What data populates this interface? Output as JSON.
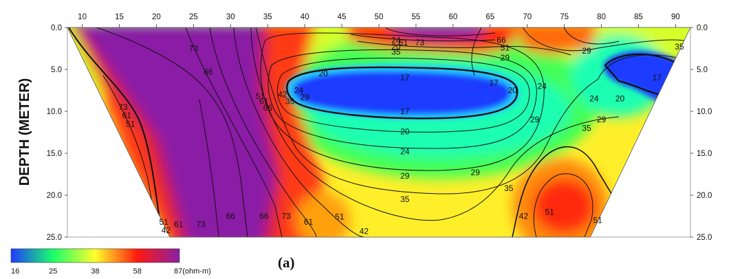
{
  "chart_data": {
    "type": "heatmap",
    "subtype": "resistivity-pseudosection",
    "title": "",
    "xlabel": "",
    "ylabel": "DEPTH (METER)",
    "panel_label": "(a)",
    "x_ticks": [
      10,
      15,
      20,
      25,
      30,
      35,
      40,
      45,
      50,
      55,
      60,
      65,
      70,
      75,
      80,
      85,
      90
    ],
    "y_ticks_left": [
      "0.0",
      "5.0",
      "10.0",
      "15.0",
      "20.0",
      "25.0"
    ],
    "y_ticks_right": [
      "0.0",
      "5.0",
      "10.0",
      "15.0",
      "20.0",
      "25.0"
    ],
    "xlim": [
      8,
      92
    ],
    "ylim": [
      0,
      25
    ],
    "y_inverted": true,
    "section_outline_xy": [
      [
        8.0,
        0
      ],
      [
        92.0,
        0
      ],
      [
        78.5,
        25
      ],
      [
        21.8,
        25
      ]
    ],
    "grid": false,
    "colorbar": {
      "ticks": [
        "16",
        "25",
        "38",
        "58"
      ],
      "max_label": "87(ohm-m)",
      "values": [
        16,
        25,
        38,
        58,
        87
      ],
      "colors": [
        "#1f3cff",
        "#19ff6a",
        "#ffff2a",
        "#ff1a10",
        "#8a1fa6"
      ],
      "placement": "bottom-left"
    },
    "regions": [
      {
        "label": "high resistivity body",
        "cx": 29,
        "cy": 14,
        "value": 87
      },
      {
        "label": "high resistivity top",
        "cx": 58,
        "cy": 0.6,
        "value": 87
      },
      {
        "label": "low resistivity lens",
        "cx": 55,
        "cy": 7.5,
        "value": 16
      },
      {
        "label": "low resistivity lens right",
        "cx": 86,
        "cy": 7,
        "value": 16
      },
      {
        "label": "moderate body",
        "cx": 74,
        "cy": 21,
        "value": 51
      }
    ],
    "contour_labels": [
      {
        "text": "73",
        "x": 25,
        "y": 2.5
      },
      {
        "text": "66",
        "x": 27,
        "y": 5.3
      },
      {
        "text": "73",
        "x": 15.5,
        "y": 9.5
      },
      {
        "text": "61",
        "x": 16,
        "y": 10.5
      },
      {
        "text": "51",
        "x": 16.5,
        "y": 11.5
      },
      {
        "text": "51",
        "x": 34,
        "y": 8.2
      },
      {
        "text": "61",
        "x": 34.5,
        "y": 8.8
      },
      {
        "text": "66",
        "x": 35,
        "y": 9.6
      },
      {
        "text": "42",
        "x": 37,
        "y": 8
      },
      {
        "text": "35",
        "x": 38,
        "y": 8.8
      },
      {
        "text": "24",
        "x": 39.2,
        "y": 7.5
      },
      {
        "text": "29",
        "x": 40,
        "y": 8.3
      },
      {
        "text": "20",
        "x": 42.5,
        "y": 5.5
      },
      {
        "text": "17",
        "x": 53.5,
        "y": 6
      },
      {
        "text": "17",
        "x": 53.5,
        "y": 10
      },
      {
        "text": "17",
        "x": 65.5,
        "y": 6.6
      },
      {
        "text": "20",
        "x": 68,
        "y": 7.5
      },
      {
        "text": "24",
        "x": 72,
        "y": 7
      },
      {
        "text": "20",
        "x": 53.5,
        "y": 12.4
      },
      {
        "text": "24",
        "x": 53.5,
        "y": 14.8
      },
      {
        "text": "29",
        "x": 53.5,
        "y": 17.7
      },
      {
        "text": "29",
        "x": 63,
        "y": 17.3
      },
      {
        "text": "35",
        "x": 53.5,
        "y": 20.5
      },
      {
        "text": "35",
        "x": 67.5,
        "y": 19.2
      },
      {
        "text": "42",
        "x": 69.5,
        "y": 22.5
      },
      {
        "text": "51",
        "x": 73,
        "y": 22
      },
      {
        "text": "51",
        "x": 79.5,
        "y": 23
      },
      {
        "text": "51",
        "x": 44.7,
        "y": 22.6
      },
      {
        "text": "42",
        "x": 48,
        "y": 24.3
      },
      {
        "text": "61",
        "x": 40.5,
        "y": 23.2
      },
      {
        "text": "66",
        "x": 30,
        "y": 22.5
      },
      {
        "text": "66",
        "x": 34.5,
        "y": 22.5
      },
      {
        "text": "73",
        "x": 37.5,
        "y": 22.5
      },
      {
        "text": "73",
        "x": 26,
        "y": 23.5
      },
      {
        "text": "61",
        "x": 23,
        "y": 23.5
      },
      {
        "text": "51",
        "x": 21,
        "y": 23.2
      },
      {
        "text": "42",
        "x": 21.3,
        "y": 24.2
      },
      {
        "text": "24",
        "x": 52.3,
        "y": 1.5
      },
      {
        "text": "20",
        "x": 52.3,
        "y": 2.3
      },
      {
        "text": "35",
        "x": 52.3,
        "y": 2.9
      },
      {
        "text": "61",
        "x": 53.3,
        "y": 1.8
      },
      {
        "text": "73",
        "x": 55.5,
        "y": 1.8
      },
      {
        "text": "66",
        "x": 66.5,
        "y": 1.5
      },
      {
        "text": "51",
        "x": 67,
        "y": 2.4
      },
      {
        "text": "29",
        "x": 67,
        "y": 3.6
      },
      {
        "text": "29",
        "x": 78,
        "y": 2.8
      },
      {
        "text": "35",
        "x": 90.5,
        "y": 2.3
      },
      {
        "text": "17",
        "x": 87.5,
        "y": 6
      },
      {
        "text": "20",
        "x": 82.5,
        "y": 8.5
      },
      {
        "text": "24",
        "x": 79,
        "y": 8.5
      },
      {
        "text": "29",
        "x": 80,
        "y": 11
      },
      {
        "text": "29",
        "x": 71,
        "y": 11
      },
      {
        "text": "35",
        "x": 78,
        "y": 12
      }
    ]
  }
}
